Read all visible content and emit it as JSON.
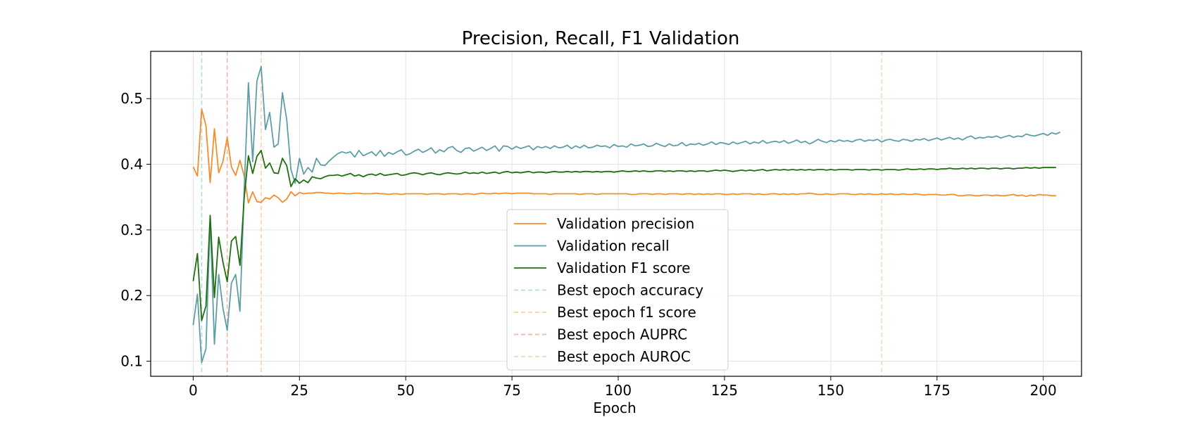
{
  "chart_data": {
    "type": "line",
    "title": "Precision, Recall, F1 Validation",
    "xlabel": "Epoch",
    "ylabel": "",
    "xlim": [
      -10,
      209
    ],
    "ylim": [
      0.077,
      0.572
    ],
    "xticks": [
      0,
      25,
      50,
      75,
      100,
      125,
      150,
      175,
      200
    ],
    "yticks": [
      0.1,
      0.2,
      0.3,
      0.4,
      0.5
    ],
    "ytick_labels": [
      "0.1",
      "0.2",
      "0.3",
      "0.4",
      "0.5"
    ],
    "grid": true,
    "legend_position": "lower center",
    "series": [
      {
        "name": "Validation precision",
        "color": "#f28e2b",
        "style": "solid",
        "x_start": 0,
        "x_step": 1,
        "values": [
          0.396,
          0.382,
          0.484,
          0.459,
          0.372,
          0.454,
          0.387,
          0.404,
          0.441,
          0.396,
          0.383,
          0.406,
          0.382,
          0.341,
          0.358,
          0.343,
          0.342,
          0.349,
          0.347,
          0.353,
          0.349,
          0.342,
          0.347,
          0.358,
          0.352,
          0.357,
          0.355,
          0.356,
          0.356,
          0.357,
          0.357,
          0.356,
          0.356,
          0.355,
          0.356,
          0.356,
          0.355,
          0.355,
          0.356,
          0.356,
          0.355,
          0.355,
          0.355,
          0.356,
          0.355,
          0.355,
          0.354,
          0.355,
          0.355,
          0.354,
          0.355,
          0.355,
          0.355,
          0.355,
          0.355,
          0.354,
          0.355,
          0.355,
          0.355,
          0.354,
          0.355,
          0.355,
          0.355,
          0.354,
          0.355,
          0.355,
          0.354,
          0.355,
          0.356,
          0.355,
          0.355,
          0.356,
          0.355,
          0.356,
          0.356,
          0.355,
          0.356,
          0.356,
          0.356,
          0.356,
          0.355,
          0.355,
          0.355,
          0.355,
          0.354,
          0.355,
          0.355,
          0.355,
          0.355,
          0.355,
          0.355,
          0.354,
          0.355,
          0.355,
          0.355,
          0.354,
          0.355,
          0.355,
          0.355,
          0.355,
          0.355,
          0.355,
          0.355,
          0.354,
          0.354,
          0.355,
          0.355,
          0.355,
          0.354,
          0.355,
          0.355,
          0.354,
          0.355,
          0.355,
          0.355,
          0.354,
          0.355,
          0.355,
          0.354,
          0.355,
          0.354,
          0.355,
          0.354,
          0.355,
          0.355,
          0.354,
          0.354,
          0.355,
          0.354,
          0.355,
          0.355,
          0.355,
          0.354,
          0.355,
          0.354,
          0.354,
          0.355,
          0.355,
          0.354,
          0.355,
          0.354,
          0.355,
          0.354,
          0.355,
          0.355,
          0.356,
          0.355,
          0.354,
          0.354,
          0.355,
          0.354,
          0.354,
          0.355,
          0.355,
          0.355,
          0.354,
          0.354,
          0.355,
          0.354,
          0.355,
          0.354,
          0.354,
          0.355,
          0.354,
          0.355,
          0.354,
          0.354,
          0.355,
          0.354,
          0.354,
          0.355,
          0.354,
          0.353,
          0.354,
          0.354,
          0.354,
          0.353,
          0.353,
          0.354,
          0.354,
          0.352,
          0.352,
          0.353,
          0.353,
          0.352,
          0.352,
          0.353,
          0.353,
          0.352,
          0.353,
          0.352,
          0.352,
          0.353,
          0.354,
          0.352,
          0.353,
          0.351,
          0.353,
          0.352,
          0.354,
          0.353,
          0.353,
          0.352,
          0.352
        ]
      },
      {
        "name": "Validation recall",
        "color": "#5e9ea6",
        "style": "solid",
        "x_start": 0,
        "x_step": 1,
        "values": [
          0.155,
          0.202,
          0.098,
          0.119,
          0.318,
          0.126,
          0.232,
          0.181,
          0.147,
          0.219,
          0.232,
          0.176,
          0.36,
          0.524,
          0.404,
          0.527,
          0.549,
          0.453,
          0.479,
          0.426,
          0.431,
          0.509,
          0.468,
          0.392,
          0.371,
          0.409,
          0.385,
          0.395,
          0.388,
          0.409,
          0.399,
          0.398,
          0.405,
          0.411,
          0.416,
          0.419,
          0.417,
          0.419,
          0.411,
          0.421,
          0.413,
          0.416,
          0.419,
          0.413,
          0.421,
          0.412,
          0.418,
          0.415,
          0.419,
          0.422,
          0.414,
          0.416,
          0.42,
          0.423,
          0.418,
          0.421,
          0.425,
          0.417,
          0.422,
          0.419,
          0.425,
          0.427,
          0.421,
          0.418,
          0.424,
          0.425,
          0.42,
          0.423,
          0.426,
          0.421,
          0.424,
          0.428,
          0.42,
          0.428,
          0.427,
          0.423,
          0.427,
          0.424,
          0.426,
          0.428,
          0.422,
          0.427,
          0.425,
          0.427,
          0.424,
          0.428,
          0.425,
          0.426,
          0.429,
          0.424,
          0.428,
          0.425,
          0.429,
          0.425,
          0.426,
          0.429,
          0.427,
          0.428,
          0.425,
          0.43,
          0.427,
          0.428,
          0.426,
          0.431,
          0.428,
          0.429,
          0.431,
          0.427,
          0.428,
          0.432,
          0.429,
          0.427,
          0.431,
          0.428,
          0.429,
          0.433,
          0.428,
          0.431,
          0.43,
          0.432,
          0.429,
          0.431,
          0.434,
          0.43,
          0.433,
          0.432,
          0.43,
          0.434,
          0.431,
          0.433,
          0.435,
          0.431,
          0.434,
          0.432,
          0.436,
          0.432,
          0.434,
          0.435,
          0.433,
          0.436,
          0.432,
          0.434,
          0.437,
          0.433,
          0.435,
          0.431,
          0.434,
          0.438,
          0.435,
          0.433,
          0.436,
          0.434,
          0.437,
          0.435,
          0.436,
          0.434,
          0.437,
          0.438,
          0.435,
          0.437,
          0.436,
          0.438,
          0.434,
          0.437,
          0.438,
          0.436,
          0.435,
          0.438,
          0.437,
          0.435,
          0.438,
          0.437,
          0.439,
          0.436,
          0.438,
          0.44,
          0.437,
          0.439,
          0.441,
          0.438,
          0.44,
          0.437,
          0.441,
          0.443,
          0.439,
          0.441,
          0.44,
          0.442,
          0.441,
          0.443,
          0.44,
          0.442,
          0.444,
          0.441,
          0.443,
          0.442,
          0.446,
          0.444,
          0.443,
          0.445,
          0.447,
          0.444,
          0.448,
          0.446,
          0.449
        ]
      },
      {
        "name": "Validation F1 score",
        "color": "#1f6f10",
        "style": "solid",
        "x_start": 0,
        "x_step": 1,
        "values": [
          0.222,
          0.264,
          0.162,
          0.184,
          0.322,
          0.197,
          0.289,
          0.251,
          0.221,
          0.283,
          0.29,
          0.246,
          0.349,
          0.413,
          0.386,
          0.412,
          0.421,
          0.394,
          0.402,
          0.387,
          0.386,
          0.409,
          0.398,
          0.366,
          0.378,
          0.371,
          0.376,
          0.372,
          0.381,
          0.379,
          0.378,
          0.381,
          0.383,
          0.383,
          0.384,
          0.382,
          0.384,
          0.386,
          0.382,
          0.384,
          0.381,
          0.384,
          0.385,
          0.383,
          0.386,
          0.383,
          0.384,
          0.385,
          0.386,
          0.383,
          0.384,
          0.386,
          0.387,
          0.386,
          0.384,
          0.386,
          0.387,
          0.385,
          0.384,
          0.386,
          0.387,
          0.386,
          0.385,
          0.386,
          0.388,
          0.386,
          0.387,
          0.386,
          0.388,
          0.386,
          0.387,
          0.388,
          0.386,
          0.388,
          0.389,
          0.387,
          0.388,
          0.387,
          0.388,
          0.389,
          0.387,
          0.388,
          0.388,
          0.387,
          0.388,
          0.389,
          0.388,
          0.388,
          0.389,
          0.388,
          0.389,
          0.388,
          0.389,
          0.389,
          0.388,
          0.389,
          0.388,
          0.389,
          0.389,
          0.388,
          0.389,
          0.39,
          0.389,
          0.389,
          0.39,
          0.389,
          0.39,
          0.389,
          0.389,
          0.39,
          0.39,
          0.389,
          0.39,
          0.389,
          0.39,
          0.39,
          0.389,
          0.39,
          0.389,
          0.39,
          0.39,
          0.389,
          0.39,
          0.391,
          0.39,
          0.391,
          0.39,
          0.389,
          0.39,
          0.391,
          0.39,
          0.391,
          0.39,
          0.391,
          0.392,
          0.39,
          0.391,
          0.392,
          0.391,
          0.392,
          0.391,
          0.392,
          0.391,
          0.392,
          0.391,
          0.392,
          0.391,
          0.392,
          0.392,
          0.391,
          0.392,
          0.391,
          0.392,
          0.392,
          0.392,
          0.391,
          0.392,
          0.392,
          0.392,
          0.391,
          0.392,
          0.392,
          0.391,
          0.392,
          0.392,
          0.392,
          0.391,
          0.392,
          0.393,
          0.392,
          0.392,
          0.393,
          0.392,
          0.393,
          0.393,
          0.392,
          0.393,
          0.393,
          0.394,
          0.393,
          0.393,
          0.394,
          0.393,
          0.394,
          0.393,
          0.394,
          0.394,
          0.393,
          0.394,
          0.394,
          0.393,
          0.394,
          0.394,
          0.393,
          0.394,
          0.394,
          0.395,
          0.394,
          0.395,
          0.394,
          0.395,
          0.395,
          0.395,
          0.395
        ]
      }
    ],
    "vlines": [
      {
        "name": "Best epoch accuracy",
        "x": 2,
        "color": "#b7dcd8",
        "style": "dashed"
      },
      {
        "name": "Best epoch f1 score",
        "x": 16,
        "color": "#fdcfa8",
        "style": "dashed"
      },
      {
        "name": "Best epoch AUPRC",
        "x": 8,
        "color": "#f4b5a3",
        "style": "dashed"
      },
      {
        "name": "Best epoch AUROC",
        "x": 162,
        "color": "#c9ecb7",
        "style": "dashed"
      }
    ],
    "legend": [
      {
        "label": "Validation precision",
        "color": "#f28e2b",
        "style": "solid"
      },
      {
        "label": "Validation recall",
        "color": "#5e9ea6",
        "style": "solid"
      },
      {
        "label": "Validation F1 score",
        "color": "#1f6f10",
        "style": "solid"
      },
      {
        "label": "Best epoch accuracy",
        "color": "#b7dcd8",
        "style": "dashed"
      },
      {
        "label": "Best epoch f1 score",
        "color": "#fdcfa8",
        "style": "dashed"
      },
      {
        "label": "Best epoch AUPRC",
        "color": "#f4b5a3",
        "style": "dashed"
      },
      {
        "label": "Best epoch AUROC",
        "color": "#c9ecb7",
        "style": "dashed"
      }
    ]
  }
}
